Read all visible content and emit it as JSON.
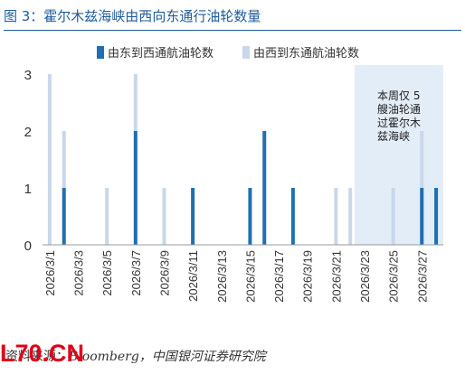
{
  "figure": {
    "title": "图 3：霍尔木兹海峡由西向东通行油轮数量",
    "source_prefix": "资料来源：",
    "source_rest": "Bloomberg，中国银河证券研究院",
    "watermark": "L70.CN"
  },
  "chart_data": {
    "type": "bar",
    "stacked": true,
    "categories": [
      "2026/3/1",
      "2026/3/2",
      "2026/3/3",
      "2026/3/4",
      "2026/3/5",
      "2026/3/6",
      "2026/3/7",
      "2026/3/8",
      "2026/3/9",
      "2026/3/10",
      "2026/3/11",
      "2026/3/12",
      "2026/3/13",
      "2026/3/14",
      "2026/3/15",
      "2026/3/16",
      "2026/3/17",
      "2026/3/18",
      "2026/3/19",
      "2026/3/20",
      "2026/3/21",
      "2026/3/22",
      "2026/3/23",
      "2026/3/24",
      "2026/3/25",
      "2026/3/26",
      "2026/3/27",
      "2026/3/28"
    ],
    "tick_labels": [
      "2026/3/1",
      "2026/3/3",
      "2026/3/5",
      "2026/3/7",
      "2026/3/9",
      "2026/3/11",
      "2026/3/13",
      "2026/3/15",
      "2026/3/17",
      "2026/3/19",
      "2026/3/21",
      "2026/3/23",
      "2026/3/25",
      "2026/3/27"
    ],
    "series": [
      {
        "name": "由东到西通航油轮数",
        "color": "#1f6fb2",
        "values": [
          0,
          1,
          0,
          0,
          0,
          0,
          2,
          0,
          0,
          0,
          1,
          0,
          0,
          0,
          1,
          2,
          0,
          1,
          0,
          0,
          0,
          0,
          0,
          0,
          0,
          0,
          1,
          1
        ]
      },
      {
        "name": "由西到东通航油轮数",
        "color": "#c9d7ea",
        "values": [
          3,
          1,
          0,
          0,
          1,
          0,
          1,
          0,
          1,
          0,
          0,
          0,
          0,
          0,
          0,
          0,
          0,
          0,
          0,
          0,
          1,
          1,
          0,
          0,
          1,
          0,
          1,
          0
        ]
      }
    ],
    "ylim": [
      0,
      3
    ],
    "yticks": [
      0,
      1,
      2,
      3
    ],
    "highlight": {
      "from": "2026/3/23",
      "to": "2026/3/28",
      "color": "#e3edf8",
      "annotation": [
        "本周仅 5",
        "艘油轮通",
        "过霍尔木",
        "兹海峡"
      ]
    },
    "legend": "top"
  }
}
